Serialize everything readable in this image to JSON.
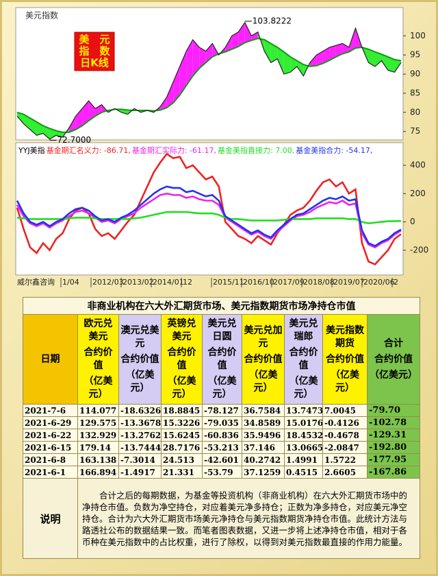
{
  "top_chart": {
    "type": "line",
    "title": "美元指数",
    "badge": [
      "美　元",
      "指　数",
      "日K线"
    ],
    "price": {
      "color": "#222222",
      "values": [
        79,
        77,
        75.5,
        74,
        74.5,
        73,
        74,
        73.5,
        76,
        79,
        81,
        83,
        81,
        82,
        80,
        81,
        80,
        79.5,
        81,
        80,
        80.5,
        80,
        81.5,
        84,
        88,
        92,
        96,
        99,
        97,
        96,
        98,
        95,
        97,
        100,
        101,
        103.5,
        100,
        101,
        96,
        93,
        94,
        90,
        90.5,
        92,
        89.5,
        93,
        95,
        96,
        97,
        97.5,
        98,
        97,
        102,
        97,
        93,
        92,
        93.5,
        91,
        90.5,
        93
      ]
    },
    "average": {
      "color": "#119911",
      "values": [
        80,
        79.5,
        78.5,
        77.5,
        76.5,
        75.8,
        75.2,
        74.8,
        74.8,
        75.5,
        76.5,
        77.8,
        79,
        80,
        80.5,
        80.8,
        80.8,
        80.6,
        80.5,
        80.5,
        80.5,
        80.4,
        80.6,
        81.2,
        82.5,
        84.5,
        87,
        89.5,
        91.5,
        93,
        94.5,
        95.3,
        95.8,
        96.5,
        97.2,
        98.2,
        98.8,
        99.3,
        99,
        98,
        97,
        95.8,
        94.5,
        93.5,
        92.5,
        92,
        92.2,
        92.8,
        93.6,
        94.5,
        95.3,
        95.8,
        96.8,
        97,
        96.5,
        95.8,
        95.2,
        94.5,
        93.8,
        93.5
      ]
    },
    "fill_above": "#ff22ff",
    "fill_below": "#33ee33",
    "annotations": [
      {
        "value": 103.8222,
        "label": "103.8222"
      },
      {
        "value": 72.7,
        "label": "72.7000"
      }
    ],
    "ylim": [
      72.8,
      107.4
    ],
    "yticks": [
      75,
      80,
      85,
      90,
      95,
      100
    ]
  },
  "chart_data": {
    "type": "line",
    "title": "YYJ美指",
    "series": [
      {
        "name": "基金期汇名义力: -86.71,",
        "color": "#ee2222",
        "values": [
          100,
          -50,
          -180,
          -220,
          -150,
          -200,
          -120,
          -80,
          20,
          80,
          100,
          60,
          -50,
          -100,
          -80,
          -120,
          -60,
          0,
          50,
          150,
          250,
          350,
          420,
          480,
          450,
          460,
          380,
          400,
          350,
          300,
          320,
          250,
          0,
          -50,
          -100,
          -120,
          -150,
          -100,
          -130,
          -160,
          -80,
          -20,
          50,
          80,
          100,
          150,
          220,
          280,
          300,
          250,
          280,
          200,
          230,
          -150,
          -280,
          -300,
          -250,
          -200,
          -120,
          -86.71
        ]
      },
      {
        "name": "基金期汇实际力: -61.17,",
        "color": "#ee22ee",
        "values": [
          120,
          40,
          -10,
          -30,
          -10,
          -40,
          -10,
          10,
          40,
          70,
          80,
          60,
          30,
          0,
          10,
          -10,
          20,
          40,
          60,
          100,
          130,
          160,
          190,
          200,
          190,
          190,
          170,
          180,
          160,
          150,
          150,
          120,
          30,
          0,
          -30,
          -60,
          -90,
          -70,
          -100,
          -120,
          -70,
          -30,
          10,
          40,
          50,
          70,
          100,
          120,
          140,
          130,
          150,
          120,
          130,
          -80,
          -160,
          -180,
          -150,
          -130,
          -90,
          -61.17
        ]
      },
      {
        "name": "基金美指直接力: 7.00,",
        "color": "#22dd22",
        "values": [
          30,
          25,
          20,
          20,
          20,
          20,
          20,
          20,
          25,
          30,
          30,
          30,
          25,
          20,
          20,
          20,
          20,
          20,
          25,
          30,
          40,
          50,
          60,
          70,
          70,
          70,
          70,
          65,
          60,
          60,
          60,
          50,
          30,
          20,
          20,
          15,
          10,
          10,
          10,
          10,
          10,
          15,
          20,
          20,
          20,
          20,
          25,
          25,
          25,
          25,
          25,
          20,
          20,
          0,
          -10,
          -5,
          0,
          5,
          5,
          7
        ]
      },
      {
        "name": "基金美指合力: -54.17,",
        "color": "#2233ee",
        "values": [
          150,
          60,
          0,
          -20,
          0,
          -30,
          0,
          20,
          60,
          90,
          100,
          80,
          40,
          10,
          20,
          0,
          30,
          50,
          80,
          120,
          160,
          200,
          230,
          250,
          240,
          240,
          210,
          220,
          200,
          180,
          190,
          150,
          40,
          10,
          -20,
          -50,
          -80,
          -60,
          -90,
          -110,
          -60,
          -20,
          20,
          50,
          60,
          90,
          120,
          150,
          170,
          160,
          180,
          150,
          160,
          -60,
          -150,
          -170,
          -140,
          -120,
          -80,
          -54.17
        ]
      }
    ],
    "source": "威尔鑫咨询",
    "xlabels": [
      "1/04",
      "2012/03",
      "2013/02",
      "2014/01",
      "12",
      "2015/11",
      "2016/10",
      "2017/09",
      "2018/08",
      "2019/07",
      "2020/06",
      "2"
    ],
    "ylim": [
      -375,
      560
    ],
    "yticks": [
      -200,
      0,
      200,
      400
    ]
  },
  "table": {
    "title": "非商业机构在六大外汇期货市场、美元指数期货市场净持仓市值",
    "header": [
      [
        "日期"
      ],
      [
        "欧元兑美元",
        "合约价值",
        "（亿美元）"
      ],
      [
        "澳元兑美元",
        "合约价值",
        "（亿美元）"
      ],
      [
        "英镑兑美元",
        "合约价值",
        "（亿美元）"
      ],
      [
        "美元兑日圆",
        "合约价值",
        "（亿美元）"
      ],
      [
        "美元兑加元",
        "合约价值",
        "（亿美元）"
      ],
      [
        "美元兑瑞郎",
        "合约价值",
        "（亿美元）"
      ],
      [
        "美元指数期货",
        "合约价值",
        "（亿美元）"
      ],
      [
        "合计",
        "合约价值",
        "（亿美元）"
      ]
    ],
    "rows": [
      [
        "2021-7-6",
        "114.077",
        "-18.6326",
        "18.8845",
        "-78.127",
        "36.7584",
        "13.7473",
        "7.0045",
        "-79.70"
      ],
      [
        "2021-6-29",
        "129.575",
        "-13.3678",
        "15.3226",
        "-79.035",
        "34.8589",
        "15.0176",
        "-0.4126",
        "-102.78"
      ],
      [
        "2021-6-22",
        "132.929",
        "-13.2762",
        "15.6245",
        "-60.836",
        "35.9496",
        "18.4532",
        "-0.4678",
        "-129.31"
      ],
      [
        "2021-6-15",
        "179.14",
        "-13.7444",
        "28.7176",
        "-53.213",
        "37.146",
        "13.0665",
        "-2.0847",
        "-192.80"
      ],
      [
        "2021-6-8",
        "163.138",
        "-7.3014",
        "24.513",
        "-42.601",
        "40.2742",
        "1.4991",
        "1.5722",
        "-177.95"
      ],
      [
        "2021-6-1",
        "166.894",
        "-1.4917",
        "21.331",
        "-53.79",
        "37.1259",
        "0.4515",
        "2.6605",
        "-167.86"
      ]
    ]
  },
  "note": {
    "label": "说明",
    "text": "合计之后的每期数据，为基金等投资机构（非商业机构）在六大外汇期货市场中的净持仓市值。负数为净空持仓，对应着美元净多持仓；正数为净多持仓，对应美元净空持仓。合计为六大外汇期货市场美元净持仓与美元指数期货净持仓市值。此统计方法与路透社公布的数据结果一致。而笔者图表数据，又进一步将上述净持仓市值，相对于各币种在美元指数中的占比权重，进行了除权，以得到对美元指数最直接的作用力能量。"
  }
}
